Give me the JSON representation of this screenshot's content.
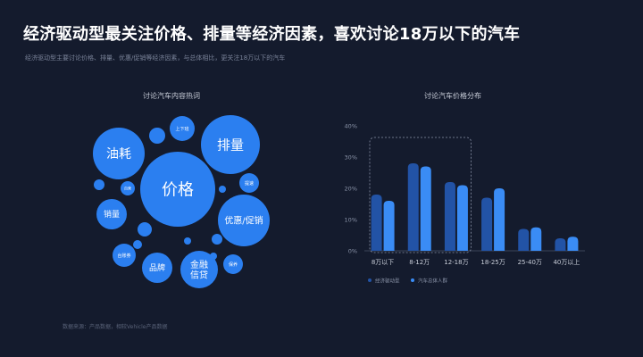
{
  "title": "经济驱动型最关注价格、排量等经济因素，喜欢讨论18万以下的汽车",
  "subtitle": "经济驱动型主要讨论价格、排量、优惠/促销等经济因素，与总体相比，更关注18万以下的汽车",
  "footnote": "数据来源：产品数据，相较Vehicle产品数据",
  "bubble_panel": {
    "title": "讨论汽车内容热词",
    "color": "#2b7ff0",
    "bubbles": [
      {
        "label": "价格"
      },
      {
        "label": "排量"
      },
      {
        "label": "油耗"
      },
      {
        "label": "优惠/促销"
      },
      {
        "label": "上下班"
      },
      {
        "label": "销量"
      },
      {
        "label": "品牌"
      },
      {
        "label": "金融\n信贷"
      },
      {
        "label": "自营"
      },
      {
        "label": "提速"
      },
      {
        "label": "台账券"
      },
      {
        "label": "保养"
      },
      {
        "label": ""
      },
      {
        "label": ""
      },
      {
        "label": ""
      },
      {
        "label": ""
      },
      {
        "label": ""
      },
      {
        "label": ""
      },
      {
        "label": ""
      },
      {
        "label": ""
      }
    ]
  },
  "chart_data": {
    "type": "bar",
    "title": "讨论汽车价格分布",
    "categories": [
      "8万以下",
      "8-12万",
      "12-18万",
      "18-25万",
      "25-40万",
      "40万以上"
    ],
    "yticks": [
      "0%",
      "10%",
      "20%",
      "30%",
      "40%"
    ],
    "ylim": [
      0,
      40
    ],
    "highlight_categories": [
      "8万以下",
      "8-12万",
      "12-18万"
    ],
    "series": [
      {
        "name": "经济驱动型",
        "color": "#2253a6",
        "values": [
          18,
          28,
          22,
          17,
          7,
          4
        ]
      },
      {
        "name": "汽车总体人群",
        "color": "#3a8cf5",
        "values": [
          16,
          27,
          21,
          20,
          7.5,
          4.5
        ]
      }
    ],
    "legend_position": "bottom-left"
  }
}
